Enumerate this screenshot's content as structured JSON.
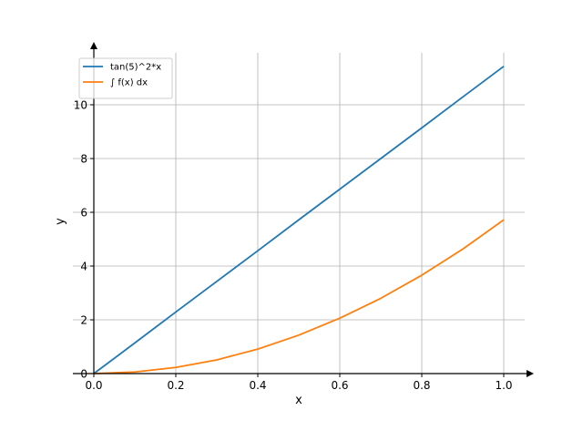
{
  "chart_data": {
    "type": "line",
    "title": "",
    "xlabel": "x",
    "ylabel": "y",
    "xlim": [
      0.0,
      1.0
    ],
    "ylim": [
      0.0,
      12.0
    ],
    "x_ticks": [
      0.0,
      0.2,
      0.4,
      0.6,
      0.8,
      1.0
    ],
    "x_tick_labels": [
      "0.0",
      "0.2",
      "0.4",
      "0.6",
      "0.8",
      "1.0"
    ],
    "y_ticks": [
      0,
      2,
      4,
      6,
      8,
      10
    ],
    "y_tick_labels": [
      "0",
      "2",
      "4",
      "6",
      "8",
      "10"
    ],
    "grid": true,
    "legend_position": "top-left",
    "series": [
      {
        "name": "tan(5)^2*x",
        "color": "#1f77b4",
        "x": [
          0.0,
          0.1,
          0.2,
          0.3,
          0.4,
          0.5,
          0.6,
          0.7,
          0.8,
          0.9,
          1.0
        ],
        "y": [
          0.0,
          1.14,
          2.29,
          3.43,
          4.57,
          5.72,
          6.86,
          8.0,
          9.14,
          10.29,
          11.43
        ]
      },
      {
        "name": "∫ f(x) dx",
        "color": "#ff7f0e",
        "x": [
          0.0,
          0.1,
          0.2,
          0.3,
          0.4,
          0.5,
          0.6,
          0.7,
          0.8,
          0.9,
          1.0
        ],
        "y": [
          0.0,
          0.06,
          0.23,
          0.51,
          0.91,
          1.43,
          2.06,
          2.8,
          3.66,
          4.63,
          5.72
        ]
      }
    ]
  }
}
